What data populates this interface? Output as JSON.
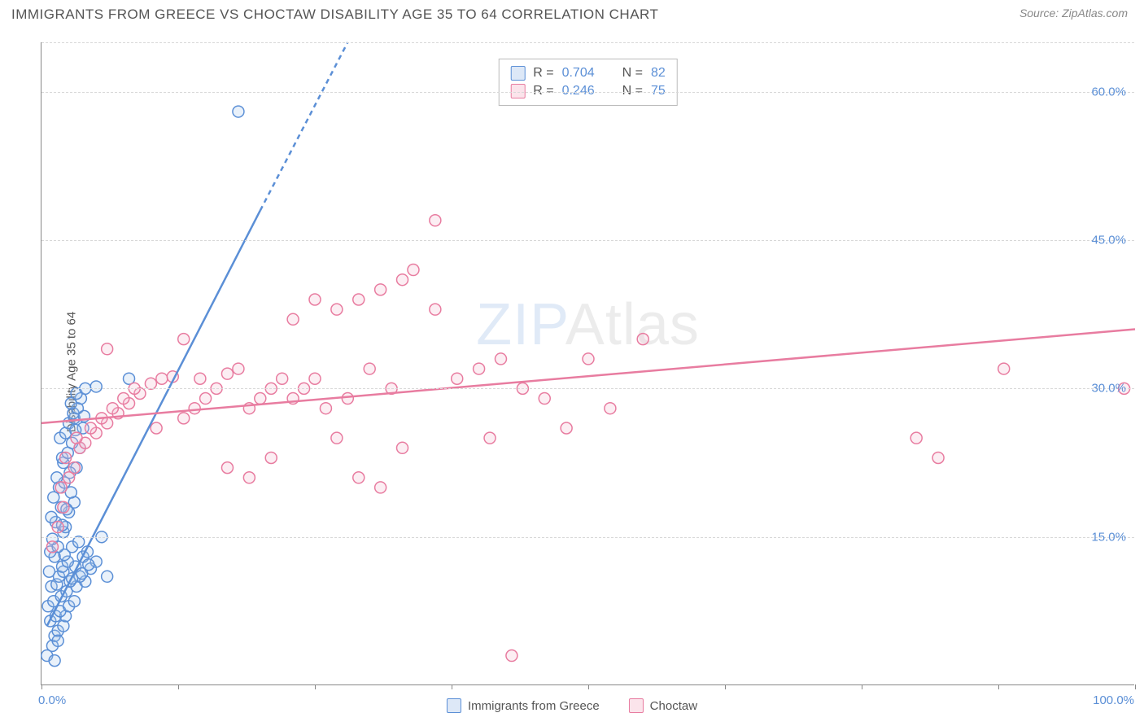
{
  "title": "IMMIGRANTS FROM GREECE VS CHOCTAW DISABILITY AGE 35 TO 64 CORRELATION CHART",
  "source": "Source: ZipAtlas.com",
  "watermark_text_a": "ZIP",
  "watermark_text_b": "Atlas",
  "ylabel": "Disability Age 35 to 64",
  "chart": {
    "type": "scatter",
    "xlim": [
      0,
      100
    ],
    "ylim": [
      0,
      65
    ],
    "y_ticks": [
      15,
      30,
      45,
      60
    ],
    "y_tick_labels": [
      "15.0%",
      "30.0%",
      "45.0%",
      "60.0%"
    ],
    "x_tick_positions": [
      0,
      12.5,
      25,
      37.5,
      50,
      62.5,
      75,
      87.5,
      100
    ],
    "x_labels": {
      "start": "0.0%",
      "end": "100.0%"
    },
    "background_color": "#ffffff",
    "grid_color": "#d8d8d8",
    "axis_color": "#888888",
    "marker_radius": 7,
    "marker_stroke_width": 1.5,
    "marker_fill_opacity": 0.25,
    "trend_line_width": 2.5,
    "series": [
      {
        "name": "Immigrants from Greece",
        "color_stroke": "#5b8fd6",
        "color_fill": "#a9c6ea",
        "R": "0.704",
        "N": "82",
        "trend": {
          "x1": 0.5,
          "y1": 6,
          "x2": 20,
          "y2": 48,
          "dash_extend": {
            "x2": 28,
            "y2": 65
          }
        },
        "points": [
          [
            0.5,
            3
          ],
          [
            1,
            4
          ],
          [
            1.2,
            5
          ],
          [
            1.5,
            5.5
          ],
          [
            2,
            6
          ],
          [
            0.8,
            6.5
          ],
          [
            1.3,
            7
          ],
          [
            2.2,
            7
          ],
          [
            1.7,
            7.5
          ],
          [
            0.6,
            8
          ],
          [
            2.5,
            8
          ],
          [
            1.1,
            8.5
          ],
          [
            3,
            8.5
          ],
          [
            1.8,
            9
          ],
          [
            2.3,
            9.5
          ],
          [
            0.9,
            10
          ],
          [
            3.2,
            10
          ],
          [
            1.4,
            10.2
          ],
          [
            2.6,
            10.5
          ],
          [
            4,
            10.5
          ],
          [
            1.6,
            11
          ],
          [
            3.5,
            11
          ],
          [
            2,
            11.5
          ],
          [
            0.7,
            11.5
          ],
          [
            4.5,
            11.8
          ],
          [
            1.9,
            12
          ],
          [
            3.1,
            12
          ],
          [
            2.4,
            12.5
          ],
          [
            5,
            12.5
          ],
          [
            1.2,
            13
          ],
          [
            3.8,
            13
          ],
          [
            2.1,
            13.2
          ],
          [
            0.8,
            13.5
          ],
          [
            4.2,
            13.5
          ],
          [
            1.5,
            14
          ],
          [
            2.8,
            14
          ],
          [
            3.4,
            14.5
          ],
          [
            1,
            14.8
          ],
          [
            5.5,
            15
          ],
          [
            2,
            15.5
          ],
          [
            2.2,
            16
          ],
          [
            1.3,
            16.5
          ],
          [
            0.9,
            17
          ],
          [
            2.5,
            17.5
          ],
          [
            1.8,
            18
          ],
          [
            3,
            18.5
          ],
          [
            1.1,
            19
          ],
          [
            2.7,
            19.5
          ],
          [
            1.6,
            20
          ],
          [
            2.1,
            20.5
          ],
          [
            1.4,
            21
          ],
          [
            3.2,
            22
          ],
          [
            2,
            22.5
          ],
          [
            1.9,
            23
          ],
          [
            2.4,
            23.5
          ],
          [
            3.5,
            24
          ],
          [
            2.8,
            24.5
          ],
          [
            1.7,
            25
          ],
          [
            2.2,
            25.5
          ],
          [
            3.8,
            26
          ],
          [
            2.5,
            26.5
          ],
          [
            3,
            27
          ],
          [
            2.9,
            27.5
          ],
          [
            3.3,
            28
          ],
          [
            2.7,
            28.5
          ],
          [
            3.6,
            29
          ],
          [
            3.2,
            29.5
          ],
          [
            4,
            30
          ],
          [
            5,
            30.2
          ],
          [
            8,
            31
          ],
          [
            6,
            11
          ],
          [
            1.5,
            4.5
          ],
          [
            1.2,
            2.5
          ],
          [
            2.8,
            10.8
          ],
          [
            3.7,
            11.3
          ],
          [
            4.3,
            12.2
          ],
          [
            1.9,
            16.2
          ],
          [
            2.3,
            17.8
          ],
          [
            2.6,
            21.5
          ],
          [
            3.1,
            25.8
          ],
          [
            3.9,
            27.2
          ],
          [
            18,
            58
          ]
        ]
      },
      {
        "name": "Choctaw",
        "color_stroke": "#e87ca0",
        "color_fill": "#f5bcce",
        "R": "0.246",
        "N": "75",
        "trend": {
          "x1": 0,
          "y1": 26.5,
          "x2": 100,
          "y2": 36
        },
        "points": [
          [
            1,
            14
          ],
          [
            1.5,
            16
          ],
          [
            2,
            18
          ],
          [
            1.8,
            20
          ],
          [
            2.5,
            21
          ],
          [
            3,
            22
          ],
          [
            2.2,
            23
          ],
          [
            3.5,
            24
          ],
          [
            4,
            24.5
          ],
          [
            3.2,
            25
          ],
          [
            5,
            25.5
          ],
          [
            4.5,
            26
          ],
          [
            6,
            26.5
          ],
          [
            5.5,
            27
          ],
          [
            7,
            27.5
          ],
          [
            6.5,
            28
          ],
          [
            8,
            28.5
          ],
          [
            7.5,
            29
          ],
          [
            9,
            29.5
          ],
          [
            8.5,
            30
          ],
          [
            10,
            30.5
          ],
          [
            11,
            31
          ],
          [
            12,
            31.2
          ],
          [
            10.5,
            26
          ],
          [
            13,
            27
          ],
          [
            14,
            28
          ],
          [
            15,
            29
          ],
          [
            16,
            30
          ],
          [
            14.5,
            31
          ],
          [
            17,
            31.5
          ],
          [
            18,
            32
          ],
          [
            19,
            28
          ],
          [
            20,
            29
          ],
          [
            21,
            30
          ],
          [
            22,
            31
          ],
          [
            23,
            29
          ],
          [
            24,
            30
          ],
          [
            25,
            31
          ],
          [
            26,
            28
          ],
          [
            28,
            29
          ],
          [
            30,
            32
          ],
          [
            32,
            30
          ],
          [
            27,
            38
          ],
          [
            29,
            39
          ],
          [
            31,
            40
          ],
          [
            33,
            41
          ],
          [
            34,
            42
          ],
          [
            36,
            38
          ],
          [
            23,
            37
          ],
          [
            25,
            39
          ],
          [
            38,
            31
          ],
          [
            40,
            32
          ],
          [
            42,
            33
          ],
          [
            36,
            47
          ],
          [
            44,
            30
          ],
          [
            46,
            29
          ],
          [
            50,
            33
          ],
          [
            52,
            28
          ],
          [
            55,
            35
          ],
          [
            48,
            26
          ],
          [
            13,
            35
          ],
          [
            17,
            22
          ],
          [
            19,
            21
          ],
          [
            21,
            23
          ],
          [
            29,
            21
          ],
          [
            31,
            20
          ],
          [
            33,
            24
          ],
          [
            27,
            25
          ],
          [
            41,
            25
          ],
          [
            43,
            3
          ],
          [
            80,
            25
          ],
          [
            82,
            23
          ],
          [
            88,
            32
          ],
          [
            99,
            30
          ],
          [
            6,
            34
          ]
        ]
      }
    ]
  },
  "legend": {
    "bottom": [
      {
        "label": "Immigrants from Greece",
        "stroke": "#5b8fd6",
        "fill": "#a9c6ea"
      },
      {
        "label": "Choctaw",
        "stroke": "#e87ca0",
        "fill": "#f5bcce"
      }
    ]
  }
}
